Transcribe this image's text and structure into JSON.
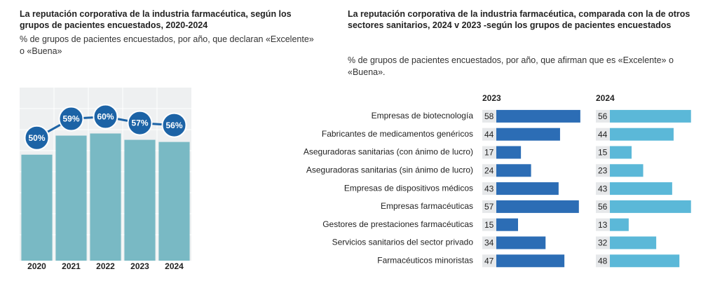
{
  "chart_data": [
    {
      "type": "bar",
      "title": "La reputación corporativa de la industria farmacéutica, según los grupos de pacientes encuestados, 2020-2024",
      "subtitle": "% de grupos de pacientes encuestados, por año, que declaran «Excelente» o «Buena»",
      "categories": [
        "2020",
        "2021",
        "2022",
        "2023",
        "2024"
      ],
      "values": [
        50,
        59,
        60,
        57,
        56
      ],
      "value_labels": [
        "50%",
        "59%",
        "60%",
        "57%",
        "56%"
      ],
      "color": "#79b9c4",
      "marker_color": "#1c63a6",
      "ylim": [
        0,
        80
      ]
    },
    {
      "type": "hbar",
      "title": "La reputación corporativa de la industria farmacéutica, comparada con la de otros sectores sanitarios, 2024 v 2023 -según los grupos de pacientes encuestados",
      "subtitle": "% de grupos de pacientes encuestados, por año, que afirman que es «Excelente» o «Buena».",
      "categories": [
        "Empresas de biotecnología",
        "Fabricantes de medicamentos genéricos",
        "Aseguradoras sanitarias (con ánimo de lucro)",
        "Aseguradoras sanitarias (sin ánimo de lucro)",
        "Empresas de dispositivos médicos",
        "Empresas farmacéuticas",
        "Gestores de prestaciones farmacéuticas",
        "Servicios sanitarios del sector privado",
        "Farmacéuticos minoristas"
      ],
      "series": [
        {
          "name": "2023",
          "color": "#2c6db5",
          "values": [
            58,
            44,
            17,
            24,
            43,
            57,
            15,
            34,
            47
          ]
        },
        {
          "name": "2024",
          "color": "#5bb8d8",
          "values": [
            56,
            44,
            15,
            23,
            43,
            56,
            13,
            32,
            48
          ]
        }
      ],
      "xlim": [
        0,
        60
      ]
    }
  ]
}
